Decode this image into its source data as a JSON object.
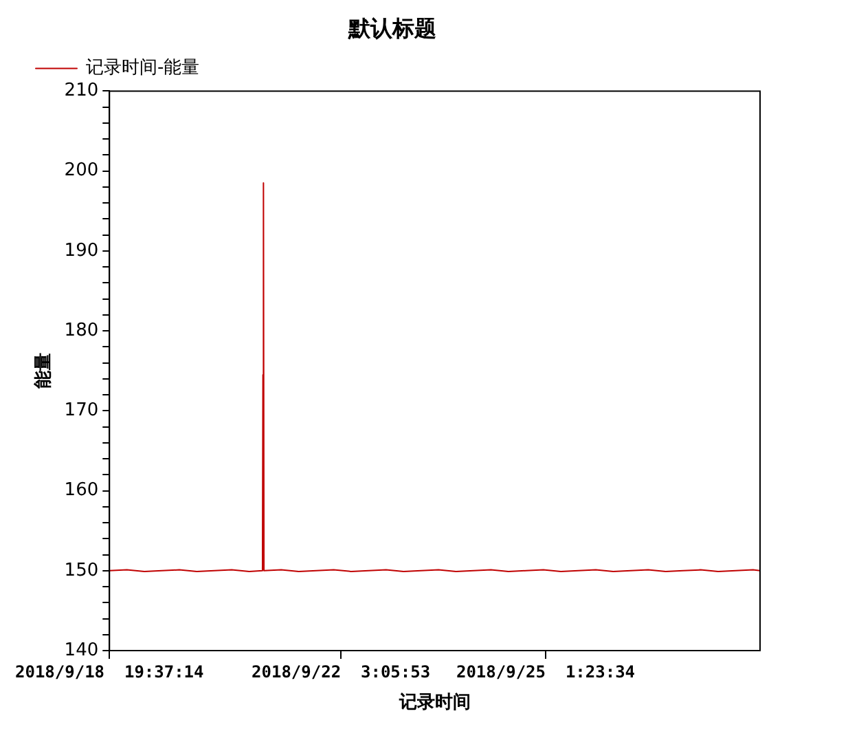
{
  "chart_data": {
    "type": "line",
    "title": "默认标题",
    "xlabel": "记录时间",
    "ylabel": "能量",
    "legend": "top left",
    "grid": false,
    "marker": "none",
    "line_style": "solid",
    "xlim": [
      "2018-09-18T19:37:14",
      "2018-09-28T03:01"
    ],
    "xticks": [
      {
        "value": "2018-09-18T19:37:14",
        "label": "2018/9/18  19:37:14"
      },
      {
        "value": "2018-09-22T03:05:53",
        "label": "2018/9/22  3:05:53"
      },
      {
        "value": "2018-09-25T01:23:34",
        "label": "2018/9/25  1:23:34"
      }
    ],
    "ylim": [
      140,
      210
    ],
    "yticks": [
      140,
      {
        "value": 142,
        "label": null
      },
      {
        "value": 144,
        "label": null
      },
      {
        "value": 146,
        "label": null
      },
      {
        "value": 148,
        "label": null
      },
      150,
      {
        "value": 152,
        "label": null
      },
      {
        "value": 154,
        "label": null
      },
      {
        "value": 156,
        "label": null
      },
      {
        "value": 158,
        "label": null
      },
      160,
      {
        "value": 162,
        "label": null
      },
      {
        "value": 164,
        "label": null
      },
      {
        "value": 166,
        "label": null
      },
      {
        "value": 168,
        "label": null
      },
      170,
      {
        "value": 172,
        "label": null
      },
      {
        "value": 174,
        "label": null
      },
      {
        "value": 176,
        "label": null
      },
      {
        "value": 178,
        "label": null
      },
      180,
      {
        "value": 182,
        "label": null
      },
      {
        "value": 184,
        "label": null
      },
      {
        "value": 186,
        "label": null
      },
      {
        "value": 188,
        "label": null
      },
      190,
      {
        "value": 192,
        "label": null
      },
      {
        "value": 194,
        "label": null
      },
      {
        "value": 196,
        "label": null
      },
      {
        "value": 198,
        "label": null
      },
      200,
      {
        "value": 202,
        "label": null
      },
      {
        "value": 204,
        "label": null
      },
      {
        "value": 206,
        "label": null
      },
      {
        "value": 208,
        "label": null
      },
      210
    ],
    "x": [
      "2018-09-18T19:37:14",
      "2018-09-19T01:37",
      "2018-09-19T07:37",
      "2018-09-19T13:37",
      "2018-09-19T19:37",
      "2018-09-20T01:37",
      "2018-09-20T07:37",
      "2018-09-20T13:37",
      "2018-09-20T19:37",
      "2018-09-21T00:10",
      "2018-09-21T00:20",
      "2018-09-21T00:30",
      "2018-09-21T00:40",
      "2018-09-21T06:37",
      "2018-09-21T12:37",
      "2018-09-21T18:37",
      "2018-09-22T00:37",
      "2018-09-22T06:37",
      "2018-09-22T12:37",
      "2018-09-22T18:37",
      "2018-09-23T00:37",
      "2018-09-23T06:37",
      "2018-09-23T12:37",
      "2018-09-23T18:37",
      "2018-09-24T00:37",
      "2018-09-24T06:37",
      "2018-09-24T12:37",
      "2018-09-24T18:37",
      "2018-09-25T00:37",
      "2018-09-25T06:37",
      "2018-09-25T12:37",
      "2018-09-25T18:37",
      "2018-09-26T00:37",
      "2018-09-26T06:37",
      "2018-09-26T12:37",
      "2018-09-26T18:37",
      "2018-09-27T00:37",
      "2018-09-27T06:37",
      "2018-09-27T12:37",
      "2018-09-27T18:37",
      "2018-09-28T00:37",
      "2018-09-28T03:01"
    ],
    "series": [
      {
        "name": "记录时间-能量",
        "color": "#c00000",
        "values": [
          150,
          150.1,
          149.9,
          150,
          150.1,
          149.9,
          150,
          150.1,
          149.9,
          150,
          174.5,
          198.5,
          150,
          150.1,
          149.9,
          150,
          150.1,
          149.9,
          150,
          150.1,
          149.9,
          150,
          150.1,
          149.9,
          150,
          150.1,
          149.9,
          150,
          150.1,
          149.9,
          150,
          150.1,
          149.9,
          150,
          150.1,
          149.9,
          150,
          150.1,
          149.9,
          150,
          150.1,
          150
        ]
      }
    ]
  }
}
